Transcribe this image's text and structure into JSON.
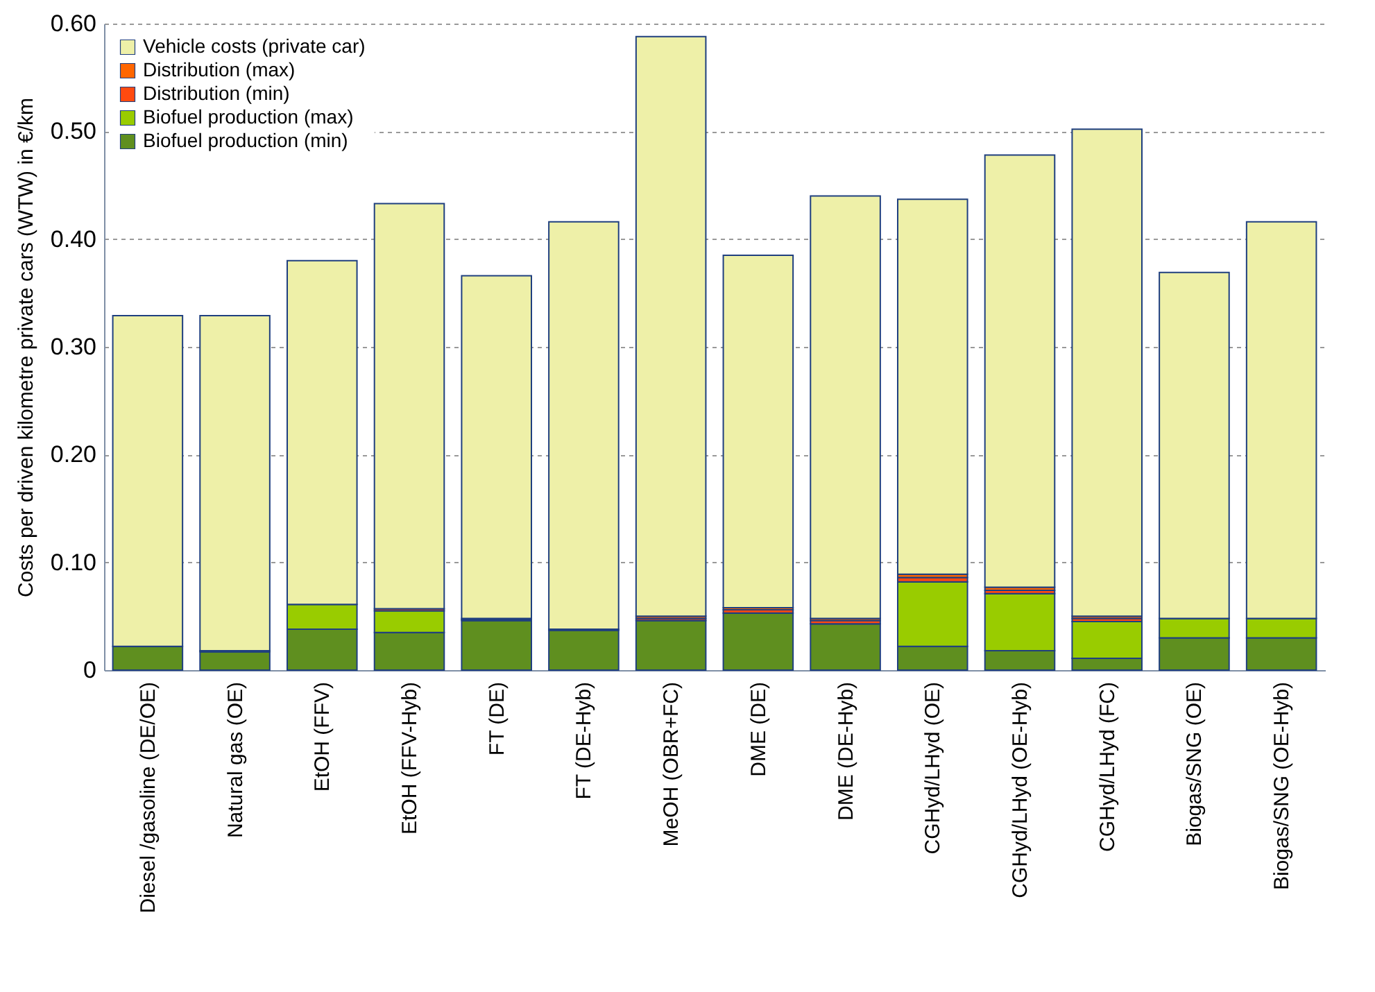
{
  "chart_data": {
    "type": "bar",
    "stacked": true,
    "ylabel": "Costs per driven kilometre private cars (WTW) in €/km",
    "categories": [
      "Diesel /gasoline (DE/OE)",
      "Natural gas (OE)",
      "EtOH (FFV)",
      "EtOH (FFV-Hyb)",
      "FT (DE)",
      "FT (DE-Hyb)",
      "MeOH (OBR+FC)",
      "DME (DE)",
      "DME (DE-Hyb)",
      "CGHyd/LHyd (OE)",
      "CGHyd/LHyd (OE-Hyb)",
      "CGHyd/LHyd (FC)",
      "Biogas/SNG (OE)",
      "Biogas/SNG (OE-Hyb)"
    ],
    "series": [
      {
        "name": "Biofuel production (min)",
        "color": "#5f8f1f",
        "values": [
          0.022,
          0.017,
          0.038,
          0.035,
          0.046,
          0.037,
          0.046,
          0.053,
          0.043,
          0.022,
          0.018,
          0.011,
          0.03,
          0.03
        ]
      },
      {
        "name": "Biofuel production (max)",
        "color": "#99cc00",
        "values": [
          0,
          0,
          0.023,
          0.02,
          0,
          0,
          0,
          0,
          0,
          0.06,
          0.053,
          0.034,
          0.018,
          0.018
        ]
      },
      {
        "name": "Distribution (min)",
        "color": "#ff4a10",
        "values": [
          null,
          0.001,
          null,
          0.002,
          0.001,
          0.001,
          0.002,
          0.003,
          0.003,
          0.004,
          0.003,
          0.003,
          null,
          null
        ]
      },
      {
        "name": "Distribution (max)",
        "color": "#ff6600",
        "values": [
          0,
          0,
          0,
          null,
          0.001,
          0,
          0.002,
          0.002,
          0.002,
          0.003,
          0.003,
          0.002,
          0,
          0
        ]
      },
      {
        "name": "Vehicle costs (private car)",
        "color": "#eef0a8",
        "values": [
          0.307,
          0.311,
          0.319,
          0.376,
          0.318,
          0.378,
          0.538,
          0.327,
          0.392,
          0.348,
          0.401,
          0.452,
          0.321,
          0.368
        ]
      }
    ],
    "ylim": [
      0,
      0.6
    ],
    "yticks": [
      0,
      {
        "value": 0.1,
        "label": "0.10"
      },
      {
        "value": 0.2,
        "label": "0.20"
      },
      {
        "value": 0.3,
        "label": "0.30"
      },
      {
        "value": 0.4,
        "label": "0.40"
      },
      {
        "value": 0.5,
        "label": "0.50"
      },
      {
        "value": 0.6,
        "label": "0.60"
      }
    ],
    "grid": "y",
    "legend": "top left"
  }
}
